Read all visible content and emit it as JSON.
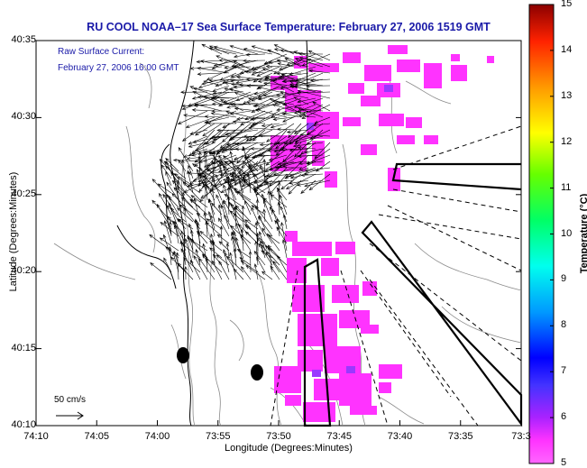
{
  "title": "RU COOL  NOAA–17  Sea Surface Temperature:  February 27, 2006 1519 GMT",
  "legend": {
    "line1": "Raw Surface Current:",
    "line2": "February 27, 2006 16:00 GMT"
  },
  "scale_label": "50 cm/s",
  "x_axis": {
    "title": "Longitude (Degrees:Minutes)",
    "ticks": [
      "74:10",
      "74:05",
      "74:00",
      "73:55",
      "73:50",
      "73:45",
      "73:40",
      "73:35",
      "73:3"
    ]
  },
  "y_axis": {
    "title": "Latitude (Degrees:Minutes)",
    "ticks": [
      "40:35",
      "40:30",
      "40:25",
      "40:20",
      "40:15",
      "40:10"
    ]
  },
  "colorbar": {
    "title": "Temperature (°C)",
    "ticks": [
      "15",
      "14",
      "13",
      "12",
      "11",
      "10",
      "9",
      "8",
      "7",
      "6",
      "5"
    ],
    "min": 5,
    "max": 15
  },
  "colors": {
    "title_blue": "#1a1aa8",
    "sst_magenta": "#ff33ff",
    "coast": "#000000"
  }
}
